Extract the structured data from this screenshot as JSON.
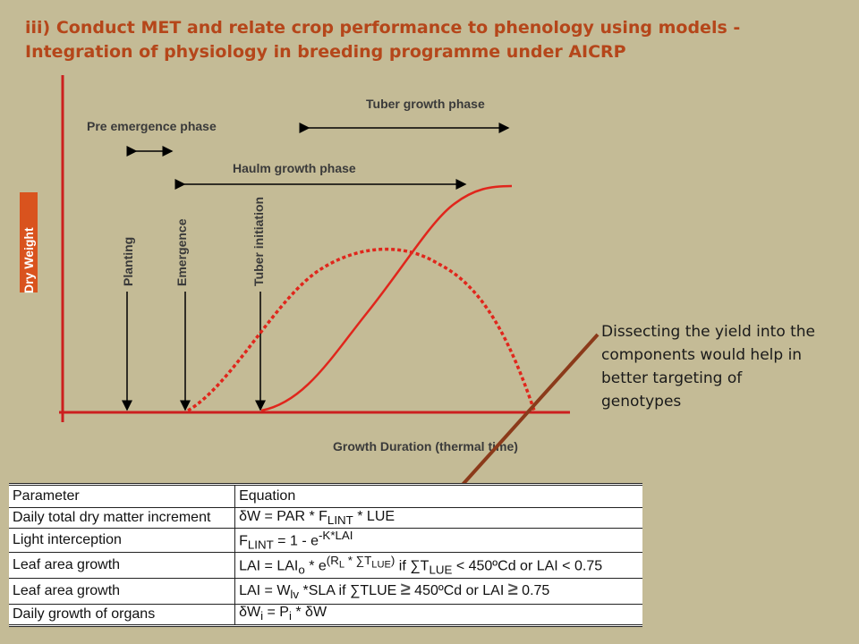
{
  "title": "iii) Conduct MET and relate crop performance to phenology  using models - Integration of physiology in breeding programme under AICRP",
  "diagram": {
    "y_axis_label": "Dry Weight",
    "x_axis_label": "Growth Duration (thermal time)",
    "stages": {
      "planting": "Planting",
      "emergence": "Emergence",
      "tuber_initiation": "Tuber initiation"
    },
    "phases": {
      "pre_emergence": "Pre emergence phase",
      "haulm_growth": "Haulm growth phase",
      "tuber_growth": "Tuber growth phase"
    },
    "colors": {
      "curve": "#e0261c",
      "arrow": "#8b3a1a",
      "axis_label_bg": "#d9531e"
    }
  },
  "note": "Dissecting the yield into the components would help in better targeting of genotypes",
  "table": {
    "headers": [
      "Parameter",
      "Equation"
    ],
    "rows": [
      {
        "parameter": "Daily total dry matter increment",
        "equation": "δW = PAR * F_LINT * LUE"
      },
      {
        "parameter": "Light interception",
        "equation": "F_LINT = 1 - e^(-K*LAI)"
      },
      {
        "parameter": "Leaf area growth",
        "equation": "LAI = LAIo * e^((RL * ∑TLUE)) if ∑TLUE < 450ºCd or LAI < 0.75"
      },
      {
        "parameter": "Leaf area growth",
        "equation": "LAI = Wlv *SLA if ∑TLUE ≥ 450ºCd or LAI ≥ 0.75"
      },
      {
        "parameter": "Daily growth of organs",
        "equation": "δWi = Pi * δW"
      }
    ]
  }
}
